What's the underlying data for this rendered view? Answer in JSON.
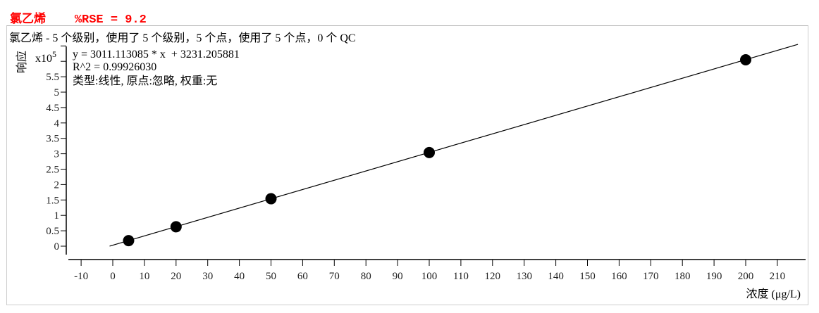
{
  "header": {
    "compound": "氯乙烯",
    "rse": "%RSE = 9.2"
  },
  "summary": "氯乙烯 - 5 个级别，使用了 5 个级别，5 个点，使用了 5 个点，0 个 QC",
  "equation": "y = 3011.113085 * x  + 3231.205881",
  "r2": "R^2 = 0.99926030",
  "fit_info": "类型:线性, 原点:忽略, 权重:无",
  "colors": {
    "title": "#ff0000",
    "points": "#000000",
    "line": "#000000"
  },
  "chart_data": {
    "type": "scatter",
    "xlabel": "浓度 (μg/L)",
    "ylabel": "响应",
    "y_multiplier": "x10",
    "y_multiplier_exp": "5",
    "xlim": [
      -13,
      218
    ],
    "ylim": [
      -0.2,
      6.6
    ],
    "xticks": [
      -10,
      0,
      10,
      20,
      30,
      40,
      50,
      60,
      70,
      80,
      90,
      100,
      110,
      120,
      130,
      140,
      150,
      160,
      170,
      180,
      190,
      200,
      210
    ],
    "yticks": [
      0,
      0.5,
      1,
      1.5,
      2,
      2.5,
      3,
      3.5,
      4,
      4.5,
      5,
      5.5
    ],
    "ytick_marks": [
      0,
      0.5,
      1,
      1.5,
      2,
      2.5,
      3,
      3.5,
      4,
      4.5,
      5,
      5.5,
      6,
      6.5
    ],
    "points": [
      {
        "x": 5,
        "y": 0.18
      },
      {
        "x": 20,
        "y": 0.63
      },
      {
        "x": 50,
        "y": 1.54
      },
      {
        "x": 100,
        "y": 3.04
      },
      {
        "x": 200,
        "y": 6.05
      }
    ],
    "fit": {
      "slope": 3011.113085,
      "intercept": 3231.205881,
      "x_range": [
        -1,
        216.5
      ]
    },
    "grid": false
  }
}
